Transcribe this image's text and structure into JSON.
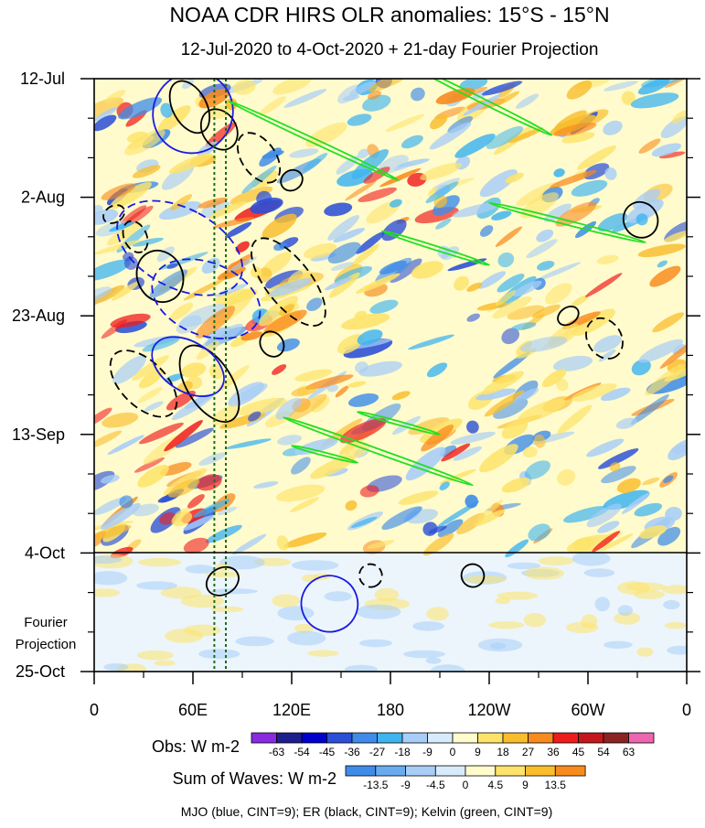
{
  "chart_data": {
    "type": "heatmap",
    "title": "NOAA CDR HIRS OLR anomalies: 15°S - 15°N",
    "subtitle": "12-Jul-2020 to 4-Oct-2020 + 21-day Fourier Projection",
    "y_tick_labels": [
      "12-Jul",
      "2-Aug",
      "23-Aug",
      "13-Sep",
      "4-Oct",
      "25-Oct"
    ],
    "y_tick_days": [
      0,
      21,
      42,
      63,
      84,
      105
    ],
    "x_tick_labels": [
      "0",
      "60E",
      "120E",
      "180",
      "120W",
      "60W",
      "0"
    ],
    "x_tick_lons": [
      0,
      60,
      120,
      180,
      240,
      300,
      360
    ],
    "projection_label_line1": "Fourier",
    "projection_label_line2": "Projection",
    "projection_start_day": 84,
    "dotted_line_lons": [
      73,
      80
    ],
    "obs_colorbar": {
      "label": "Obs: W m-2",
      "ticks": [
        "-63",
        "-54",
        "-45",
        "-36",
        "-27",
        "-18",
        "-9",
        "0",
        "9",
        "18",
        "27",
        "36",
        "45",
        "54",
        "63"
      ],
      "colors": [
        "#8a2be2",
        "#1e1e8c",
        "#0000cd",
        "#2b4fd6",
        "#3f8ce8",
        "#3fb4f0",
        "#a8cdf7",
        "#d8ebfb",
        "#fffbcc",
        "#fde36a",
        "#f9bd2c",
        "#f88b1e",
        "#ef1c1c",
        "#c4161c",
        "#8b2323",
        "#ee66b0"
      ]
    },
    "waves_colorbar": {
      "label": "Sum of Waves: W m-2",
      "ticks": [
        "-13.5",
        "-9",
        "-4.5",
        "0",
        "4.5",
        "9",
        "13.5"
      ],
      "colors": [
        "#3f8ce8",
        "#6aabf0",
        "#a8cdf7",
        "#d8ebfb",
        "#fffbcc",
        "#fde36a",
        "#f9bd2c",
        "#f88b1e"
      ]
    },
    "footer": "MJO (blue, CINT=9); ER (black, CINT=9); Kelvin (green, CINT=9)",
    "wave_colors": {
      "mjo": "#1a1ae0",
      "er": "#000000",
      "kelvin": "#22e022"
    },
    "mjo_contours": [
      {
        "lon": 60,
        "day": 6,
        "rl": 25,
        "rd": 7,
        "angle": -55,
        "dashed": false
      },
      {
        "lon": 68,
        "day": 39,
        "rl": 22,
        "rd": 10,
        "angle": -68,
        "dashed": true
      },
      {
        "lon": 52,
        "day": 30,
        "rl": 24,
        "rd": 12,
        "angle": -62,
        "dashed": true
      },
      {
        "lon": 57,
        "day": 51,
        "rl": 15,
        "rd": 7,
        "angle": -58,
        "dashed": false
      },
      {
        "lon": 143,
        "day": 93,
        "rl": 17,
        "rd": 5,
        "angle": -65,
        "dashed": false
      }
    ],
    "er_contours": [
      {
        "lon": 58,
        "day": 5,
        "rl": 17,
        "rd": 3,
        "angle": 62,
        "dashed": false
      },
      {
        "lon": 76,
        "day": 9,
        "rl": 13,
        "rd": 3,
        "angle": 58,
        "dashed": false
      },
      {
        "lon": 100,
        "day": 14,
        "rl": 17,
        "rd": 3,
        "angle": 55,
        "dashed": true
      },
      {
        "lon": 120,
        "day": 18,
        "rl": 6,
        "rd": 2,
        "angle": 55,
        "dashed": false
      },
      {
        "lon": 40,
        "day": 35,
        "rl": 16,
        "rd": 4,
        "angle": 65,
        "dashed": false
      },
      {
        "lon": 118,
        "day": 36,
        "rl": 32,
        "rd": 4,
        "angle": 52,
        "dashed": true
      },
      {
        "lon": 30,
        "day": 54,
        "rl": 25,
        "rd": 4,
        "angle": 45,
        "dashed": true
      },
      {
        "lon": 70,
        "day": 54,
        "rl": 26,
        "rd": 4,
        "angle": 58,
        "dashed": false
      },
      {
        "lon": 108,
        "day": 47,
        "rl": 8,
        "rd": 2,
        "angle": 55,
        "dashed": false
      },
      {
        "lon": 25,
        "day": 28,
        "rl": 10,
        "rd": 2,
        "angle": 65,
        "dashed": true
      },
      {
        "lon": 12,
        "day": 24,
        "rl": 5,
        "rd": 2,
        "angle": 60,
        "dashed": true
      },
      {
        "lon": 332,
        "day": 25,
        "rl": 11,
        "rd": 3,
        "angle": 60,
        "dashed": false
      },
      {
        "lon": 310,
        "day": 46,
        "rl": 13,
        "rd": 3,
        "angle": 58,
        "dashed": true
      },
      {
        "lon": 288,
        "day": 42,
        "rl": 5,
        "rd": 2,
        "angle": 55,
        "dashed": false
      },
      {
        "lon": 78,
        "day": 89,
        "rl": 8,
        "rd": 3,
        "angle": 60,
        "dashed": false
      },
      {
        "lon": 168,
        "day": 88,
        "rl": 7,
        "rd": 2,
        "angle": 60,
        "dashed": true
      },
      {
        "lon": 230,
        "day": 88,
        "rl": 7,
        "rd": 2,
        "angle": 60,
        "dashed": false
      }
    ],
    "kelvin_contours": [
      {
        "x1": 195,
        "d1": -2,
        "x2": 278,
        "d2": 10,
        "w": 2.6
      },
      {
        "x1": 82,
        "d1": 4,
        "x2": 185,
        "d2": 18,
        "w": 2.4
      },
      {
        "x1": 240,
        "d1": 22,
        "x2": 335,
        "d2": 29,
        "w": 2.4
      },
      {
        "x1": 175,
        "d1": 27,
        "x2": 240,
        "d2": 33,
        "w": 2.2
      },
      {
        "x1": 115,
        "d1": 60,
        "x2": 230,
        "d2": 72,
        "w": 2.6
      },
      {
        "x1": 160,
        "d1": 59,
        "x2": 210,
        "d2": 63,
        "w": 2.0
      },
      {
        "x1": 120,
        "d1": 65,
        "x2": 160,
        "d2": 68,
        "w": 1.8
      }
    ]
  }
}
